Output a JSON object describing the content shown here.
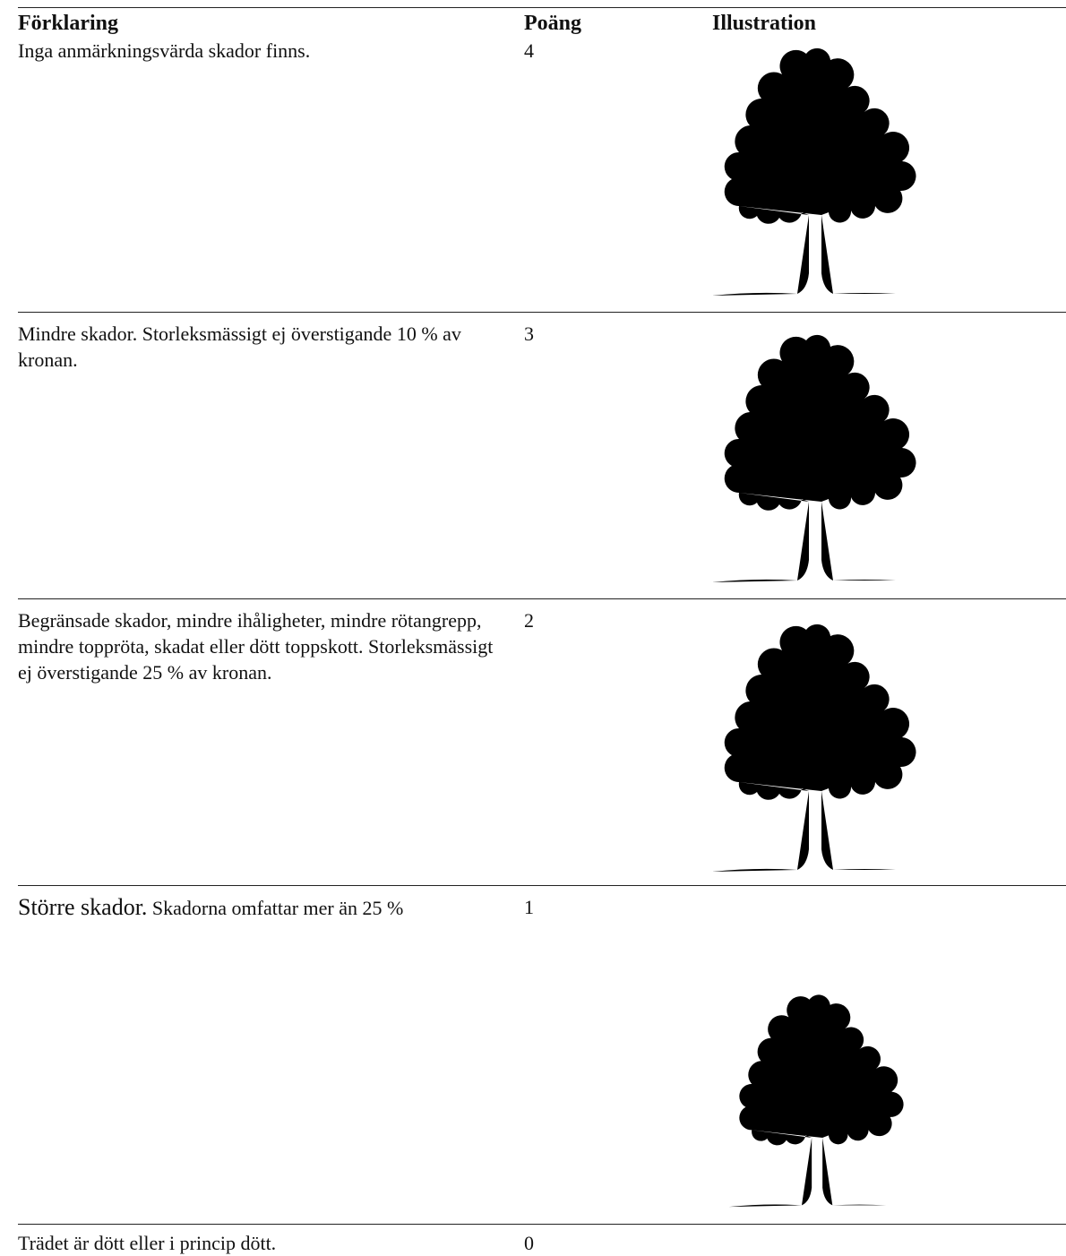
{
  "header": {
    "explanation": "Förklaring",
    "points": "Poäng",
    "illustration": "Illustration"
  },
  "rows": [
    {
      "explanation": [
        "Inga anmärkningsvärda skador finns."
      ],
      "points": "4"
    },
    {
      "explanation": [
        "Mindre skador. Storleksmässigt ej överstigande 10 % av kronan."
      ],
      "points": "3"
    },
    {
      "explanation": [
        "Begränsade skador, mindre ihåligheter, mindre rötangrepp, mindre toppröta, skadat eller dött toppskott. Storleksmässigt ej överstigande 25 % av kronan."
      ],
      "points": "2"
    },
    {
      "explanation": [
        "Större skador.",
        "Skadorna omfattar mer än 25 %"
      ],
      "points": "1"
    },
    {
      "explanation": [
        "Trädet är dött eller i princip dött."
      ],
      "points": "0"
    }
  ]
}
